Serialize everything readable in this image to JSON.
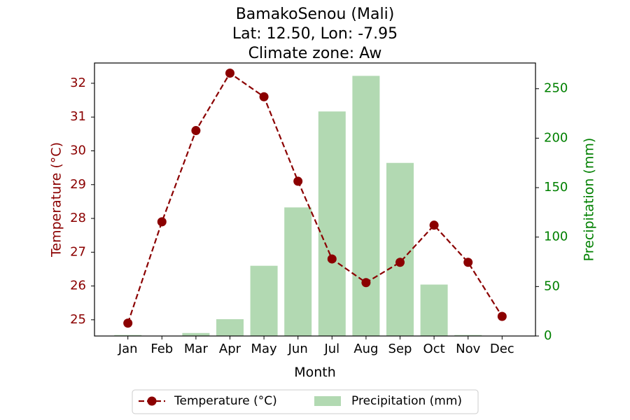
{
  "chart_data": {
    "type": "bar+line",
    "title_lines": [
      "BamakoSenou (Mali)",
      "Lat: 12.50, Lon: -7.95",
      "Climate zone: Aw"
    ],
    "xlabel": "Month",
    "ylabel_left": "Temperature (°C)",
    "ylabel_right": "Precipitation (mm)",
    "categories": [
      "Jan",
      "Feb",
      "Mar",
      "Apr",
      "May",
      "Jun",
      "Jul",
      "Aug",
      "Sep",
      "Oct",
      "Nov",
      "Dec"
    ],
    "temperature": {
      "name": "Temperature (°C)",
      "values": [
        24.9,
        27.9,
        30.6,
        32.3,
        31.6,
        29.1,
        26.8,
        26.1,
        26.7,
        27.8,
        26.7,
        25.1
      ],
      "ylim": [
        24.52,
        32.6
      ],
      "ticks": [
        25,
        26,
        27,
        28,
        29,
        30,
        31,
        32
      ],
      "color": "#8b0000"
    },
    "precipitation": {
      "name": "Precipitation (mm)",
      "values": [
        1,
        0,
        3,
        17,
        71,
        130,
        227,
        263,
        175,
        52,
        1,
        0
      ],
      "ylim": [
        0,
        276
      ],
      "ticks": [
        0,
        50,
        100,
        150,
        200,
        250
      ],
      "color": "#b2d9b2",
      "axis_color": "#008000"
    },
    "legend_position": "bottom-center",
    "grid": false
  }
}
